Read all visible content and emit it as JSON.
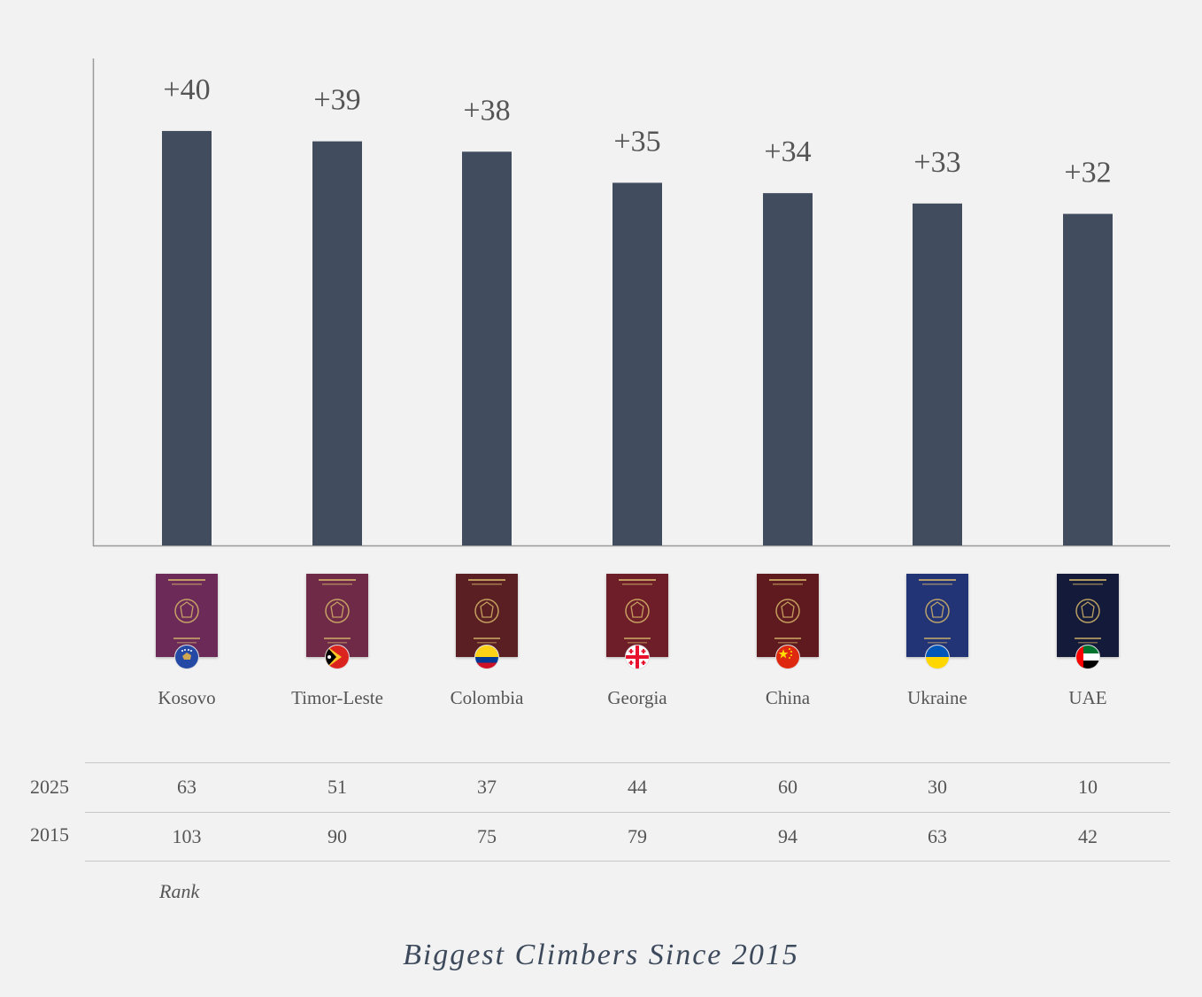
{
  "chart_data": {
    "type": "bar",
    "categories": [
      "Kosovo",
      "Timor-Leste",
      "Colombia",
      "Georgia",
      "China",
      "Ukraine",
      "UAE"
    ],
    "values": [
      40,
      39,
      38,
      35,
      34,
      33,
      32
    ],
    "data_labels": [
      "+40",
      "+39",
      "+38",
      "+35",
      "+34",
      "+33",
      "+32"
    ],
    "title": "Biggest Climbers Since 2015",
    "xlabel": "",
    "ylabel": "",
    "ylim": [
      0,
      47
    ],
    "grid": false,
    "legend": "none",
    "bar_color": "#414d5f"
  },
  "rank_table": {
    "note": "Rank",
    "rows": [
      {
        "label": "2025",
        "values": [
          "63",
          "51",
          "37",
          "44",
          "60",
          "30",
          "10"
        ]
      },
      {
        "label": "2015",
        "values": [
          "103",
          "90",
          "75",
          "79",
          "94",
          "63",
          "42"
        ]
      }
    ]
  },
  "countries": [
    {
      "name": "Kosovo",
      "icon": "kosovo-passport-icon",
      "flag_icon": "kosovo-flag-icon",
      "cover_color": "#6b2a57"
    },
    {
      "name": "Timor-Leste",
      "icon": "timor-leste-passport-icon",
      "flag_icon": "timor-leste-flag-icon",
      "cover_color": "#6e2a47"
    },
    {
      "name": "Colombia",
      "icon": "colombia-passport-icon",
      "flag_icon": "colombia-flag-icon",
      "cover_color": "#5a1f22"
    },
    {
      "name": "Georgia",
      "icon": "georgia-passport-icon",
      "flag_icon": "georgia-flag-icon",
      "cover_color": "#6e1e28"
    },
    {
      "name": "China",
      "icon": "china-passport-icon",
      "flag_icon": "china-flag-icon",
      "cover_color": "#5e1a1e"
    },
    {
      "name": "Ukraine",
      "icon": "ukraine-passport-icon",
      "flag_icon": "ukraine-flag-icon",
      "cover_color": "#233476"
    },
    {
      "name": "UAE",
      "icon": "uae-passport-icon",
      "flag_icon": "uae-flag-icon",
      "cover_color": "#141b3a"
    }
  ]
}
